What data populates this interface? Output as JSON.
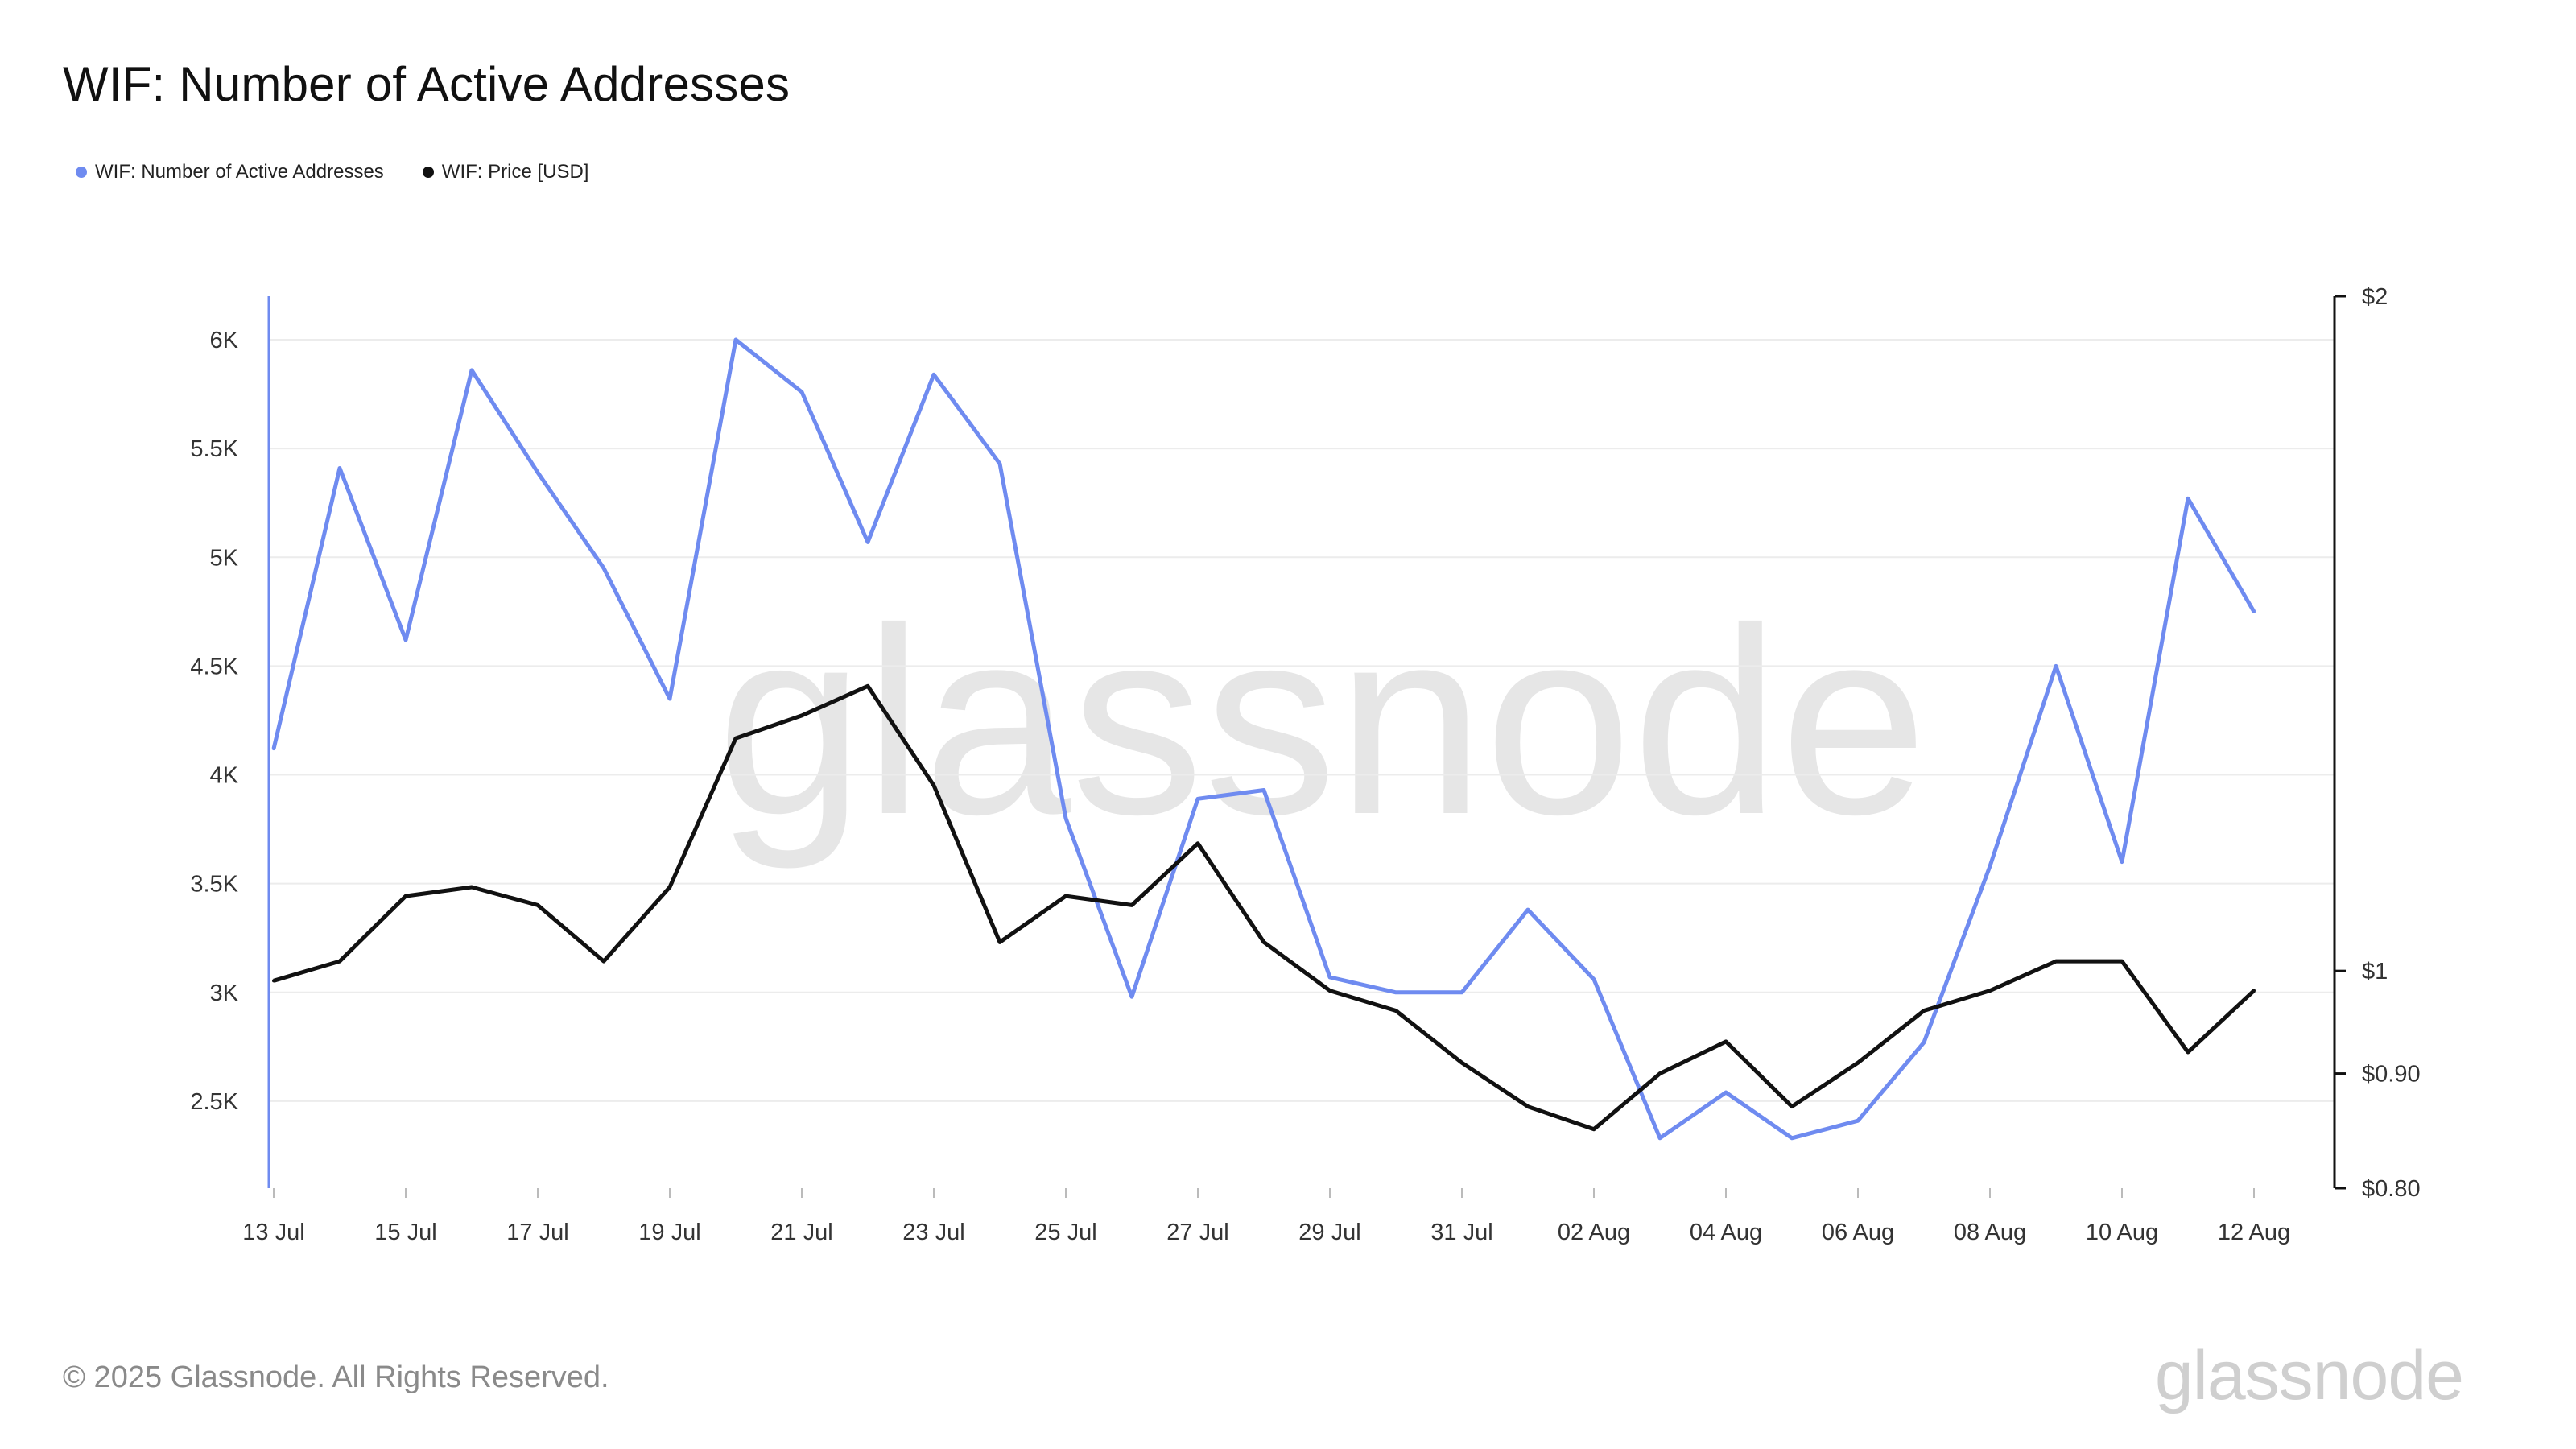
{
  "title": "WIF: Number of Active Addresses",
  "legend": [
    {
      "label": "WIF: Number of Active Addresses",
      "color": "#6f8bf0"
    },
    {
      "label": "WIF: Price [USD]",
      "color": "#111111"
    }
  ],
  "footer": "© 2025 Glassnode. All Rights Reserved.",
  "brand": "glassnode",
  "watermark": "glassnode",
  "chart_data": {
    "type": "line",
    "x": [
      "13 Jul",
      "14 Jul",
      "15 Jul",
      "16 Jul",
      "17 Jul",
      "18 Jul",
      "19 Jul",
      "20 Jul",
      "21 Jul",
      "22 Jul",
      "23 Jul",
      "24 Jul",
      "25 Jul",
      "26 Jul",
      "27 Jul",
      "28 Jul",
      "29 Jul",
      "30 Jul",
      "31 Jul",
      "01 Aug",
      "02 Aug",
      "03 Aug",
      "04 Aug",
      "05 Aug",
      "06 Aug",
      "07 Aug",
      "08 Aug",
      "09 Aug",
      "10 Aug",
      "11 Aug",
      "12 Aug"
    ],
    "x_tick_labels": [
      "13 Jul",
      "15 Jul",
      "17 Jul",
      "19 Jul",
      "21 Jul",
      "23 Jul",
      "25 Jul",
      "27 Jul",
      "29 Jul",
      "31 Jul",
      "02 Aug",
      "04 Aug",
      "06 Aug",
      "08 Aug",
      "10 Aug",
      "12 Aug"
    ],
    "series": [
      {
        "name": "WIF: Number of Active Addresses",
        "axis": "left",
        "color": "#6f8bf0",
        "values": [
          4120,
          5410,
          4620,
          5860,
          5390,
          4950,
          4350,
          6000,
          5760,
          5070,
          5840,
          5430,
          3800,
          2980,
          3890,
          3930,
          3070,
          3000,
          3000,
          3380,
          3060,
          2330,
          2540,
          2330,
          2410,
          2770,
          3580,
          4500,
          3600,
          5270,
          4750
        ]
      },
      {
        "name": "WIF: Price [USD]",
        "axis": "right",
        "color": "#111111",
        "values": [
          0.99,
          1.01,
          1.08,
          1.09,
          1.07,
          1.01,
          1.09,
          1.27,
          1.3,
          1.34,
          1.21,
          1.03,
          1.08,
          1.07,
          1.14,
          1.03,
          0.98,
          0.96,
          0.91,
          0.87,
          0.85,
          0.9,
          0.93,
          0.87,
          0.91,
          0.96,
          0.98,
          1.01,
          1.01,
          0.92,
          0.98
        ]
      }
    ],
    "y_left": {
      "ticks": [
        2500,
        3000,
        3500,
        4000,
        4500,
        5000,
        5500,
        6000
      ],
      "tick_labels": [
        "2.5K",
        "3K",
        "3.5K",
        "4K",
        "4.5K",
        "5K",
        "5.5K",
        "6K"
      ],
      "range": [
        2100,
        6200
      ]
    },
    "y_right": {
      "scale": "log",
      "ticks": [
        0.8,
        0.9,
        1,
        2
      ],
      "tick_labels": [
        "$0.80",
        "$0.90",
        "$1",
        "$2"
      ],
      "range": [
        0.8,
        2
      ]
    },
    "grid": true,
    "legend_position": "top-left"
  }
}
